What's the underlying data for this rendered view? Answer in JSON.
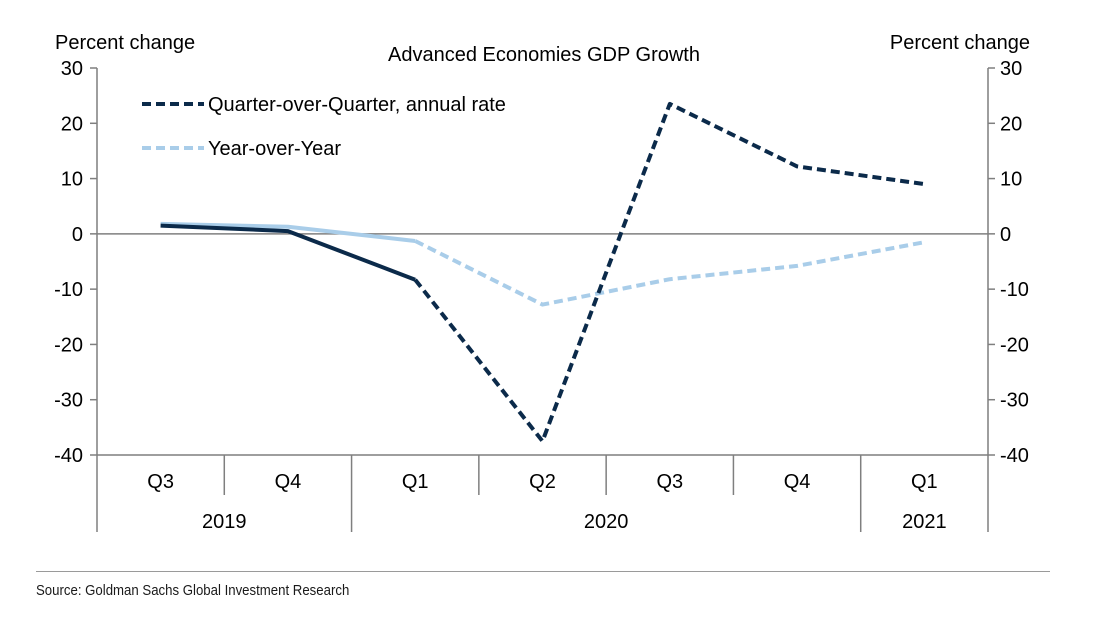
{
  "chart_data": {
    "type": "line",
    "title": "Advanced Economies GDP Growth",
    "ylabel_left": "Percent change",
    "ylabel_right": "Percent change",
    "ylim": [
      -40,
      30
    ],
    "yticks": [
      30,
      20,
      10,
      0,
      -10,
      -20,
      -30,
      -40
    ],
    "categories": [
      "Q3",
      "Q4",
      "Q1",
      "Q2",
      "Q3",
      "Q4",
      "Q1"
    ],
    "years": [
      {
        "label": "2019",
        "start": 0,
        "end": 1
      },
      {
        "label": "2020",
        "start": 2,
        "end": 5
      },
      {
        "label": "2021",
        "start": 6,
        "end": 6
      }
    ],
    "series": [
      {
        "name": "Quarter-over-Quarter, annual rate",
        "color": "#0b2a4a",
        "values": [
          1.5,
          0.5,
          -8.3,
          -37.5,
          23.5,
          12.2,
          9.0
        ],
        "actual_through_index": 2
      },
      {
        "name": "Year-over-Year",
        "color": "#a9cde9",
        "values": [
          1.8,
          1.3,
          -1.3,
          -12.8,
          -8.2,
          -5.8,
          -1.5
        ],
        "actual_through_index": 2
      }
    ],
    "source": "Source: Goldman Sachs Global Investment Research"
  }
}
